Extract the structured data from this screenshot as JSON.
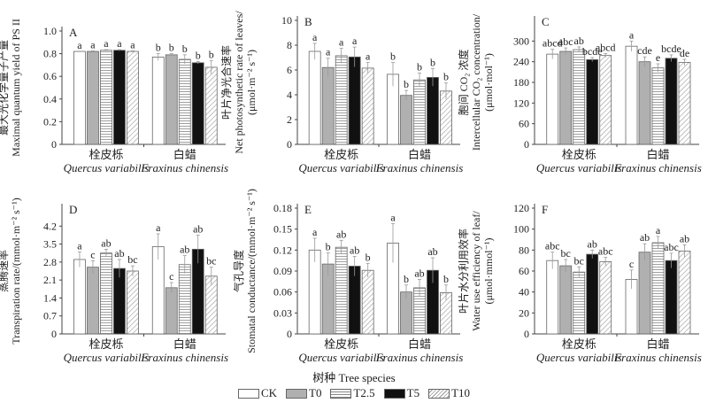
{
  "figure": {
    "x_axis_title": "树种 Tree species",
    "legend": [
      {
        "key": "CK",
        "label": "CK",
        "fill": "#ffffff",
        "pattern": "none"
      },
      {
        "key": "T0",
        "label": "T0",
        "fill": "#b0b0b0",
        "pattern": "none"
      },
      {
        "key": "T2.5",
        "label": "T2.5",
        "fill": "#ffffff",
        "pattern": "horizontal"
      },
      {
        "key": "T5",
        "label": "T5",
        "fill": "#111111",
        "pattern": "none"
      },
      {
        "key": "T10",
        "label": "T10",
        "fill": "#ffffff",
        "pattern": "diagonal"
      }
    ]
  },
  "chart_data": [
    {
      "type": "bar",
      "panel": "A",
      "ylabel_cn": "最大光化学量子产量",
      "ylabel_en": "Maximal quantum yield of PS II",
      "ylabel_unit": "",
      "ylim": [
        0,
        1.0
      ],
      "yticks": [
        "0",
        "0.2",
        "0.4",
        "0.6",
        "0.8",
        "1.0"
      ],
      "ytick_values": [
        0,
        0.2,
        0.4,
        0.6,
        0.8,
        1.0
      ],
      "categories": [
        {
          "cn": "栓皮栎",
          "latin": "Quercus variabilis"
        },
        {
          "cn": "白蜡",
          "latin": "Fraxinus chinensis"
        }
      ],
      "series": [
        {
          "name": "CK",
          "values": [
            0.82,
            0.77
          ],
          "errors": [
            0.0,
            0.03
          ],
          "letters": [
            "a",
            "b"
          ]
        },
        {
          "name": "T0",
          "values": [
            0.82,
            0.79
          ],
          "errors": [
            0.005,
            0.01
          ],
          "letters": [
            "a",
            "b"
          ]
        },
        {
          "name": "T2.5",
          "values": [
            0.83,
            0.75
          ],
          "errors": [
            0.005,
            0.04
          ],
          "letters": [
            "a",
            "b"
          ]
        },
        {
          "name": "T5",
          "values": [
            0.83,
            0.72
          ],
          "errors": [
            0.005,
            0.01
          ],
          "letters": [
            "a",
            "b"
          ]
        },
        {
          "name": "T10",
          "values": [
            0.82,
            0.68
          ],
          "errors": [
            0.005,
            0.06
          ],
          "letters": [
            "a",
            "b"
          ]
        }
      ]
    },
    {
      "type": "bar",
      "panel": "B",
      "ylabel_cn": "叶片净光合速率",
      "ylabel_en": "Net photosynthetic rate of leaves/",
      "ylabel_unit": "(μmol·m⁻² s⁻¹)",
      "ylim": [
        0,
        10
      ],
      "yticks": [
        "0",
        "2",
        "4",
        "6",
        "8",
        "10"
      ],
      "ytick_values": [
        0,
        2,
        4,
        6,
        8,
        10
      ],
      "categories": [
        {
          "cn": "栓皮栎",
          "latin": "Quercus variabilis"
        },
        {
          "cn": "白蜡",
          "latin": "Fraxinus chinensis"
        }
      ],
      "series": [
        {
          "name": "CK",
          "values": [
            7.5,
            5.65
          ],
          "errors": [
            0.65,
            0.95
          ],
          "letters": [
            "a",
            "b"
          ]
        },
        {
          "name": "T0",
          "values": [
            6.2,
            3.95
          ],
          "errors": [
            0.75,
            0.4
          ],
          "letters": [
            "a",
            "b"
          ]
        },
        {
          "name": "T2.5",
          "values": [
            7.15,
            5.2
          ],
          "errors": [
            0.6,
            0.55
          ],
          "letters": [
            "a",
            "b"
          ]
        },
        {
          "name": "T5",
          "values": [
            7.05,
            5.4
          ],
          "errors": [
            0.8,
            0.7
          ],
          "letters": [
            "a",
            "b"
          ]
        },
        {
          "name": "T10",
          "values": [
            6.15,
            4.3
          ],
          "errors": [
            0.45,
            0.65
          ],
          "letters": [
            "a",
            "b"
          ]
        }
      ]
    },
    {
      "type": "bar",
      "panel": "C",
      "ylabel_cn": "胞间 CO₂ 浓度",
      "ylabel_en": "Intercellular CO₂ concentration/",
      "ylabel_unit": "(μmol·mol⁻¹)",
      "ylim": [
        0,
        360
      ],
      "yticks": [
        "0",
        "60",
        "120",
        "180",
        "240",
        "300"
      ],
      "ytick_values": [
        0,
        60,
        120,
        180,
        240,
        300
      ],
      "categories": [
        {
          "cn": "栓皮栎",
          "latin": "Quercus variabilis"
        },
        {
          "cn": "白蜡",
          "latin": "Fraxinus chinensis"
        }
      ],
      "series": [
        {
          "name": "CK",
          "values": [
            262,
            285
          ],
          "errors": [
            14,
            15
          ],
          "letters": [
            "abcd",
            "a"
          ]
        },
        {
          "name": "T0",
          "values": [
            270,
            240
          ],
          "errors": [
            10,
            14
          ],
          "letters": [
            "abc",
            "cde"
          ]
        },
        {
          "name": "T2.5",
          "values": [
            275,
            222
          ],
          "errors": [
            8,
            12
          ],
          "letters": [
            "ab",
            "e"
          ]
        },
        {
          "name": "T5",
          "values": [
            246,
            250
          ],
          "errors": [
            6,
            10
          ],
          "letters": [
            "bcde",
            "bcde"
          ]
        },
        {
          "name": "T10",
          "values": [
            258,
            238
          ],
          "errors": [
            6,
            9
          ],
          "letters": [
            "abcd",
            "de"
          ]
        }
      ]
    },
    {
      "type": "bar",
      "panel": "D",
      "ylabel_cn": "蒸腾速率",
      "ylabel_en": "Transpiration rate/(mmol·m⁻² s⁻¹)",
      "ylabel_unit": "",
      "ylim": [
        0,
        4.9
      ],
      "yticks": [
        "0",
        "0.7",
        "1.4",
        "2.1",
        "2.8",
        "3.5",
        "4.2"
      ],
      "ytick_values": [
        0,
        0.7,
        1.4,
        2.1,
        2.8,
        3.5,
        4.2
      ],
      "categories": [
        {
          "cn": "栓皮栎",
          "latin": "Quercus variabilis"
        },
        {
          "cn": "白蜡",
          "latin": "Fraxinus chinensis"
        }
      ],
      "series": [
        {
          "name": "CK",
          "values": [
            2.9,
            3.4
          ],
          "errors": [
            0.3,
            0.5
          ],
          "letters": [
            "a",
            "a"
          ]
        },
        {
          "name": "T0",
          "values": [
            2.6,
            1.8
          ],
          "errors": [
            0.25,
            0.2
          ],
          "letters": [
            "c",
            "c"
          ]
        },
        {
          "name": "T2.5",
          "values": [
            3.15,
            2.7
          ],
          "errors": [
            0.15,
            0.35
          ],
          "letters": [
            "ab",
            "ab"
          ]
        },
        {
          "name": "T5",
          "values": [
            2.55,
            3.3
          ],
          "errors": [
            0.35,
            0.55
          ],
          "letters": [
            "ab",
            "ab"
          ]
        },
        {
          "name": "T10",
          "values": [
            2.45,
            2.25
          ],
          "errors": [
            0.2,
            0.35
          ],
          "letters": [
            "bc",
            "bc"
          ]
        }
      ]
    },
    {
      "type": "bar",
      "panel": "E",
      "ylabel_cn": "气孔导度",
      "ylabel_en": "Stomatal conductance/(mmol·m⁻² s⁻¹)",
      "ylabel_unit": "",
      "ylim": [
        0,
        0.18
      ],
      "yticks": [
        "0",
        "0.03",
        "0.06",
        "0.09",
        "0.12",
        "0.15",
        "0.18"
      ],
      "ytick_values": [
        0,
        0.03,
        0.06,
        0.09,
        0.12,
        0.15,
        0.18
      ],
      "categories": [
        {
          "cn": "栓皮栎",
          "latin": "Quercus variabilis"
        },
        {
          "cn": "白蜡",
          "latin": "Fraxinus chinensis"
        }
      ],
      "series": [
        {
          "name": "CK",
          "values": [
            0.12,
            0.13
          ],
          "errors": [
            0.017,
            0.028
          ],
          "letters": [
            "a",
            "a"
          ]
        },
        {
          "name": "T0",
          "values": [
            0.1,
            0.06
          ],
          "errors": [
            0.016,
            0.01
          ],
          "letters": [
            "b",
            "b"
          ]
        },
        {
          "name": "T2.5",
          "values": [
            0.124,
            0.066
          ],
          "errors": [
            0.01,
            0.012
          ],
          "letters": [
            "ab",
            "ab"
          ]
        },
        {
          "name": "T5",
          "values": [
            0.097,
            0.091
          ],
          "errors": [
            0.014,
            0.018
          ],
          "letters": [
            "ab",
            "ab"
          ]
        },
        {
          "name": "T10",
          "values": [
            0.091,
            0.059
          ],
          "errors": [
            0.01,
            0.011
          ],
          "letters": [
            "b",
            "b"
          ]
        }
      ]
    },
    {
      "type": "bar",
      "panel": "F",
      "ylabel_cn": "叶片水分利用效率",
      "ylabel_en": "Water use efficiency of leaf/",
      "ylabel_unit": "(μmol·mmol⁻¹)",
      "ylim": [
        0,
        120
      ],
      "yticks": [
        "0",
        "20",
        "40",
        "60",
        "80",
        "100",
        "120"
      ],
      "ytick_values": [
        0,
        20,
        40,
        60,
        80,
        100,
        120
      ],
      "categories": [
        {
          "cn": "栓皮栎",
          "latin": "Quercus variabilis"
        },
        {
          "cn": "白蜡",
          "latin": "Fraxinus chinensis"
        }
      ],
      "series": [
        {
          "name": "CK",
          "values": [
            70,
            52
          ],
          "errors": [
            8,
            9
          ],
          "letters": [
            "abc",
            "c"
          ]
        },
        {
          "name": "T0",
          "values": [
            65,
            78
          ],
          "errors": [
            6,
            8
          ],
          "letters": [
            "bc",
            "ab"
          ]
        },
        {
          "name": "T2.5",
          "values": [
            59,
            87
          ],
          "errors": [
            5,
            6
          ],
          "letters": [
            "bc",
            "a"
          ]
        },
        {
          "name": "T5",
          "values": [
            76,
            70
          ],
          "errors": [
            4,
            7
          ],
          "letters": [
            "ab",
            "abc"
          ]
        },
        {
          "name": "T10",
          "values": [
            69,
            79
          ],
          "errors": [
            4,
            6
          ],
          "letters": [
            "abc",
            "ab"
          ]
        }
      ]
    }
  ]
}
